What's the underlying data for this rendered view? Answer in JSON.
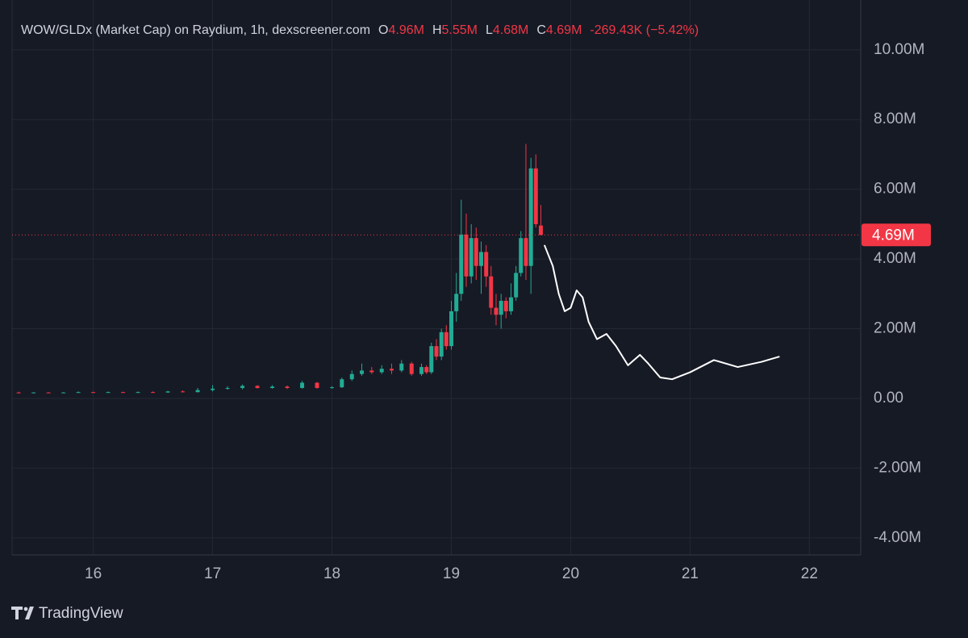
{
  "chart_data": {
    "type": "candlestick",
    "title": "WOW/GLDx (Market Cap) on Raydium, 1h, dexscreener.com",
    "ohlc_legend": [
      {
        "key": "O",
        "value": "4.96M"
      },
      {
        "key": "H",
        "value": "5.55M"
      },
      {
        "key": "L",
        "value": "4.68M"
      },
      {
        "key": "C",
        "value": "4.69M"
      }
    ],
    "change": "-269.43K (−5.42%)",
    "up_color": "#22ab94",
    "down_color": "#f23645",
    "x": [
      15.375,
      15.5,
      15.625,
      15.75,
      15.875,
      16.0,
      16.125,
      16.25,
      16.375,
      16.5,
      16.625,
      16.75,
      16.875,
      17.0,
      17.125,
      17.25,
      17.375,
      17.5,
      17.625,
      17.75,
      17.875,
      18.0,
      18.083,
      18.167,
      18.25,
      18.333,
      18.417,
      18.5,
      18.583,
      18.667,
      18.75,
      18.792,
      18.833,
      18.875,
      18.917,
      18.958,
      19.0,
      19.042,
      19.083,
      19.125,
      19.167,
      19.208,
      19.25,
      19.292,
      19.333,
      19.375,
      19.417,
      19.458,
      19.5,
      19.542,
      19.583,
      19.625,
      19.667,
      19.708,
      19.75
    ],
    "open": [
      0.17,
      0.16,
      0.17,
      0.16,
      0.17,
      0.18,
      0.17,
      0.18,
      0.17,
      0.18,
      0.17,
      0.2,
      0.18,
      0.24,
      0.28,
      0.3,
      0.36,
      0.3,
      0.34,
      0.3,
      0.45,
      0.3,
      0.32,
      0.55,
      0.7,
      0.8,
      0.75,
      0.85,
      0.8,
      1.0,
      0.7,
      0.9,
      0.75,
      1.5,
      1.2,
      1.9,
      1.5,
      2.5,
      3.0,
      4.7,
      3.5,
      4.6,
      3.8,
      4.2,
      3.5,
      2.6,
      2.4,
      2.8,
      2.5,
      2.9,
      3.6,
      4.6,
      3.8,
      6.6,
      4.96
    ],
    "high": [
      0.19,
      0.18,
      0.18,
      0.18,
      0.2,
      0.19,
      0.2,
      0.19,
      0.2,
      0.2,
      0.22,
      0.23,
      0.3,
      0.38,
      0.35,
      0.4,
      0.38,
      0.38,
      0.37,
      0.5,
      0.47,
      0.35,
      0.6,
      0.8,
      1.0,
      0.9,
      0.95,
      1.0,
      1.1,
      1.05,
      1.0,
      0.95,
      1.6,
      1.7,
      2.0,
      2.1,
      2.8,
      3.6,
      5.7,
      5.3,
      5.0,
      4.9,
      4.5,
      4.4,
      3.8,
      3.0,
      3.0,
      2.9,
      3.3,
      3.8,
      4.8,
      7.3,
      6.9,
      7.0,
      5.55
    ],
    "low": [
      0.15,
      0.15,
      0.15,
      0.15,
      0.16,
      0.16,
      0.16,
      0.16,
      0.16,
      0.16,
      0.16,
      0.17,
      0.17,
      0.2,
      0.25,
      0.26,
      0.28,
      0.28,
      0.27,
      0.28,
      0.28,
      0.28,
      0.3,
      0.5,
      0.65,
      0.7,
      0.7,
      0.7,
      0.75,
      0.65,
      0.65,
      0.7,
      0.7,
      1.1,
      1.1,
      1.4,
      1.4,
      2.2,
      2.8,
      3.2,
      3.3,
      3.4,
      3.0,
      3.2,
      2.4,
      2.1,
      2.0,
      2.3,
      2.4,
      2.8,
      3.5,
      3.4,
      3.0,
      4.9,
      4.68
    ],
    "close": [
      0.16,
      0.17,
      0.16,
      0.17,
      0.18,
      0.17,
      0.18,
      0.17,
      0.18,
      0.17,
      0.2,
      0.18,
      0.24,
      0.28,
      0.3,
      0.36,
      0.3,
      0.34,
      0.3,
      0.45,
      0.3,
      0.32,
      0.55,
      0.7,
      0.8,
      0.75,
      0.85,
      0.8,
      1.0,
      0.7,
      0.9,
      0.75,
      1.5,
      1.2,
      1.9,
      1.5,
      2.5,
      3.0,
      4.7,
      3.5,
      4.6,
      3.8,
      4.2,
      3.5,
      2.6,
      2.4,
      2.8,
      2.5,
      2.9,
      3.6,
      4.6,
      3.8,
      6.6,
      5.0,
      4.69
    ],
    "projection": {
      "color": "#ffffff",
      "x": [
        19.78,
        19.85,
        19.9,
        19.95,
        20.0,
        20.05,
        20.1,
        20.15,
        20.22,
        20.3,
        20.38,
        20.48,
        20.58,
        20.65,
        20.75,
        20.85,
        21.0,
        21.2,
        21.4,
        21.6,
        21.75
      ],
      "values": [
        4.4,
        3.8,
        3.0,
        2.5,
        2.6,
        3.1,
        2.9,
        2.2,
        1.7,
        1.85,
        1.5,
        0.95,
        1.25,
        1.0,
        0.6,
        0.55,
        0.75,
        1.1,
        0.9,
        1.05,
        1.2
      ]
    },
    "last_price": {
      "value": 4.69,
      "label": "4.69M"
    },
    "xlim": [
      15.32,
      22.43
    ],
    "xticks": [
      16,
      17,
      18,
      19,
      20,
      21,
      22
    ],
    "ylim": [
      -4.49,
      11.43
    ],
    "yticks": [
      {
        "value": 10,
        "label": "10.00M"
      },
      {
        "value": 8,
        "label": "8.00M"
      },
      {
        "value": 6,
        "label": "6.00M"
      },
      {
        "value": 4,
        "label": "4.00M"
      },
      {
        "value": 2,
        "label": "2.00M"
      },
      {
        "value": 0,
        "label": "0.00"
      },
      {
        "value": -2,
        "label": "-2.00M"
      },
      {
        "value": -4,
        "label": "-4.00M"
      }
    ],
    "grid": true
  },
  "brand": "TradingView"
}
